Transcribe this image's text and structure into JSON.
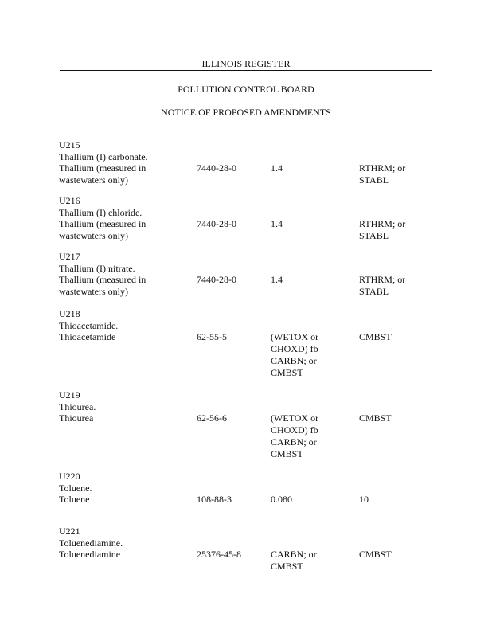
{
  "header": {
    "register": "ILLINOIS REGISTER",
    "board": "POLLUTION CONTROL BOARD",
    "notice": "NOTICE OF PROPOSED AMENDMENTS"
  },
  "entries": [
    {
      "code": "U215",
      "names": [
        "Thallium (I) carbonate.",
        "Thallium (measured in",
        "wastewaters only)"
      ],
      "cas": "7440-28-0",
      "ww": [
        "1.4"
      ],
      "nww": [
        "RTHRM; or",
        "STABL"
      ]
    },
    {
      "code": "U216",
      "names": [
        "Thallium (I) chloride.",
        "Thallium (measured in",
        "wastewaters only)"
      ],
      "cas": "7440-28-0",
      "ww": [
        "1.4"
      ],
      "nww": [
        "RTHRM; or",
        "STABL"
      ]
    },
    {
      "code": "U217",
      "names": [
        "Thallium (I) nitrate.",
        "Thallium (measured in",
        "wastewaters only)"
      ],
      "cas": "7440-28-0",
      "ww": [
        "1.4"
      ],
      "nww": [
        "RTHRM; or",
        "STABL"
      ]
    },
    {
      "code": "U218",
      "names": [
        "Thioacetamide.",
        "Thioacetamide"
      ],
      "cas": "62-55-5",
      "ww": [
        "(WETOX or",
        "CHOXD) fb",
        "CARBN; or",
        "CMBST"
      ],
      "nww": [
        "CMBST"
      ]
    },
    {
      "code": "U219",
      "names": [
        "Thiourea.",
        "Thiourea"
      ],
      "cas": "62-56-6",
      "ww": [
        "(WETOX or",
        "CHOXD) fb",
        "CARBN; or",
        "CMBST"
      ],
      "nww": [
        "CMBST"
      ]
    },
    {
      "code": "U220",
      "names": [
        "Toluene.",
        "Toluene"
      ],
      "cas": "108-88-3",
      "ww": [
        "0.080"
      ],
      "nww": [
        "10"
      ]
    },
    {
      "code": "U221",
      "names": [
        "Toluenediamine.",
        "Toluenediamine"
      ],
      "cas": "25376-45-8",
      "ww": [
        "CARBN; or",
        "CMBST"
      ],
      "nww": [
        "CMBST"
      ]
    }
  ]
}
